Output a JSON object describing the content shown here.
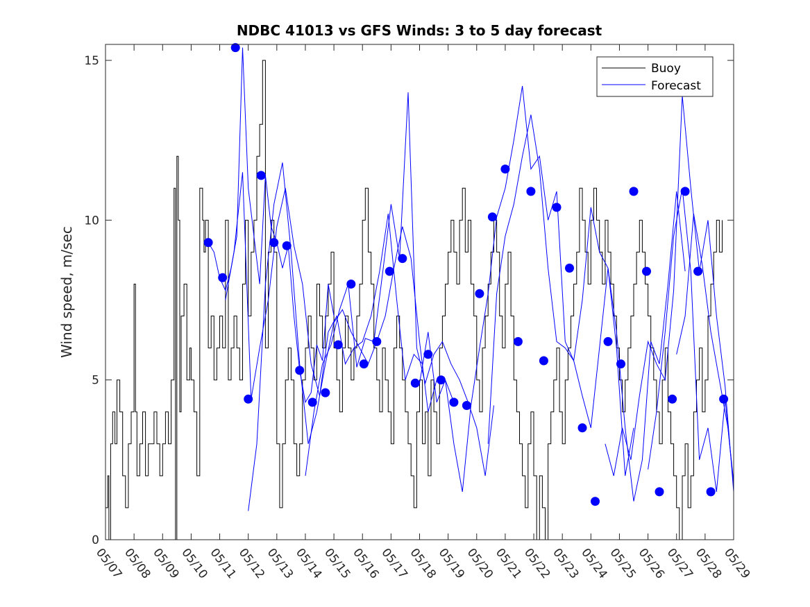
{
  "chart_data": {
    "type": "line",
    "title": "NDBC 41013 vs GFS Winds: 3 to 5 day forecast",
    "xlabel": "",
    "ylabel": "Wind speed, m/sec",
    "ylim": [
      0,
      15.5
    ],
    "xlim": [
      0,
      22
    ],
    "x_tick_labels": [
      "05/07",
      "05/08",
      "05/09",
      "05/10",
      "05/11",
      "05/12",
      "05/13",
      "05/14",
      "05/15",
      "05/16",
      "05/17",
      "05/18",
      "05/19",
      "05/20",
      "05/21",
      "05/22",
      "05/23",
      "05/24",
      "05/25",
      "05/26",
      "05/27",
      "05/28",
      "05/29"
    ],
    "y_ticks": [
      0,
      5,
      10,
      15
    ],
    "legend": {
      "placement": "top-right",
      "entries": [
        "Buoy",
        "Forecast"
      ]
    },
    "colors": {
      "buoy": "#000000",
      "forecast": "#0000ff"
    },
    "series": [
      {
        "name": "Buoy",
        "x": [
          0.0,
          0.08,
          0.12,
          0.18,
          0.25,
          0.33,
          0.4,
          0.5,
          0.6,
          0.7,
          0.8,
          0.9,
          1.0,
          1.05,
          1.1,
          1.2,
          1.3,
          1.4,
          1.5,
          1.6,
          1.7,
          1.8,
          1.9,
          2.0,
          2.1,
          2.2,
          2.3,
          2.4,
          2.45,
          2.5,
          2.55,
          2.6,
          2.65,
          2.75,
          2.85,
          2.95,
          3.0,
          3.1,
          3.2,
          3.3,
          3.4,
          3.45,
          3.5,
          3.6,
          3.7,
          3.8,
          3.9,
          4.0,
          4.1,
          4.2,
          4.3,
          4.4,
          4.5,
          4.6,
          4.7,
          4.8,
          4.9,
          5.0,
          5.1,
          5.2,
          5.3,
          5.4,
          5.5,
          5.6,
          5.7,
          5.8,
          5.9,
          6.0,
          6.1,
          6.2,
          6.3,
          6.4,
          6.5,
          6.6,
          6.7,
          6.8,
          6.9,
          7.0,
          7.1,
          7.2,
          7.3,
          7.4,
          7.5,
          7.6,
          7.7,
          7.8,
          7.9,
          8.0,
          8.1,
          8.2,
          8.3,
          8.4,
          8.5,
          8.6,
          8.7,
          8.8,
          8.9,
          9.0,
          9.1,
          9.2,
          9.3,
          9.4,
          9.5,
          9.6,
          9.7,
          9.8,
          9.9,
          10.0,
          10.1,
          10.2,
          10.3,
          10.4,
          10.5,
          10.6,
          10.7,
          10.8,
          10.9,
          11.0,
          11.1,
          11.2,
          11.3,
          11.4,
          11.5,
          11.6,
          11.7,
          11.8,
          11.9,
          12.0,
          12.1,
          12.2,
          12.3,
          12.4,
          12.5,
          12.6,
          12.7,
          12.8,
          12.9,
          13.0,
          13.1,
          13.2,
          13.3,
          13.4,
          13.5,
          13.6,
          13.7,
          13.8,
          13.9,
          14.0,
          14.1,
          14.2,
          14.3,
          14.4,
          14.5,
          14.6,
          14.7,
          14.8,
          14.9,
          15.0,
          15.1,
          15.2,
          15.3,
          15.4,
          15.5,
          15.6,
          15.7,
          15.8,
          15.9,
          16.0,
          16.1,
          16.2,
          16.3,
          16.4,
          16.5,
          16.6,
          16.7,
          16.8,
          16.9,
          17.0,
          17.1,
          17.2,
          17.3,
          17.4,
          17.5,
          17.6,
          17.7,
          17.8,
          17.9,
          18.0,
          18.1,
          18.2,
          18.3,
          18.4,
          18.5,
          18.6,
          18.7,
          18.8,
          18.9,
          19.0,
          19.1,
          19.2,
          19.3,
          19.4,
          19.5,
          19.6,
          19.7,
          19.8,
          19.9,
          20.0,
          20.1,
          20.2,
          20.3,
          20.4,
          20.5,
          20.6,
          20.7,
          20.8,
          20.9,
          21.0,
          21.1,
          21.2,
          21.3,
          21.4,
          21.5,
          21.6
        ],
        "values": [
          1,
          2,
          0,
          3,
          4,
          3,
          5,
          4,
          2,
          1,
          3,
          4,
          8,
          4,
          2,
          3,
          4,
          2,
          3,
          3,
          4,
          3,
          2,
          3,
          4,
          3,
          5,
          11,
          0,
          12,
          10,
          4,
          7,
          8,
          5,
          6,
          5,
          4,
          2,
          11,
          10,
          9,
          10,
          6,
          7,
          5,
          6,
          7,
          6,
          10,
          5,
          6,
          7,
          6,
          5,
          8,
          10,
          7,
          9,
          10,
          12,
          13,
          15,
          6,
          9,
          10,
          9,
          3,
          1,
          3,
          5,
          6,
          5,
          3,
          2,
          3,
          5,
          6,
          7,
          6,
          5,
          8,
          7,
          6,
          7,
          8,
          9,
          6,
          5,
          4,
          6,
          7,
          6,
          5,
          6,
          7,
          8,
          10,
          11,
          9,
          8,
          6,
          5,
          4,
          6,
          5,
          4,
          3,
          6,
          7,
          6,
          5,
          4,
          3,
          2,
          1,
          4,
          5,
          3,
          4,
          2,
          5,
          4,
          3,
          6,
          7,
          8,
          9,
          10,
          9,
          8,
          10,
          11,
          9,
          10,
          8,
          7,
          5,
          4,
          6,
          7,
          8,
          9,
          10,
          9,
          7,
          6,
          8,
          9,
          7,
          5,
          4,
          3,
          2,
          1,
          3,
          4,
          2,
          0,
          2,
          1,
          0,
          3,
          4,
          5,
          6,
          4,
          3,
          5,
          6,
          7,
          8,
          9,
          11,
          10,
          9,
          8,
          10,
          11,
          10,
          9,
          8,
          10,
          9,
          8,
          7,
          6,
          5,
          4,
          5,
          6,
          7,
          8,
          9,
          10,
          9,
          8,
          7,
          6,
          5,
          4,
          3,
          5,
          6,
          4,
          3,
          2,
          1,
          0,
          2,
          3,
          1,
          2,
          4,
          5,
          6,
          4,
          5,
          7,
          8,
          9,
          10,
          9,
          10
        ]
      },
      {
        "name": "Forecast",
        "runs": [
          {
            "x": [
              3.6,
              3.8,
              4.0,
              4.2,
              4.4,
              4.6,
              4.8,
              5.0,
              5.2,
              5.4,
              5.6,
              5.8,
              6.0,
              6.2,
              6.4,
              6.6,
              6.8,
              7.0,
              7.2,
              7.4,
              7.6,
              7.8,
              8.0
            ],
            "values": [
              9.3,
              9.0,
              8.2,
              7.8,
              8.5,
              9.5,
              15.4,
              11.0,
              9.5,
              8.0,
              11.4,
              9.8,
              9.3,
              8.5,
              9.2,
              7.0,
              5.3,
              4.3,
              4.6,
              6.1,
              5.6,
              8.0,
              7.0
            ]
          },
          {
            "x": [
              4.2,
              4.5,
              4.8,
              5.1,
              5.4,
              5.7,
              6.0,
              6.3,
              6.6,
              6.9,
              7.2,
              7.5,
              7.8,
              8.1,
              8.4,
              8.7,
              9.0,
              9.3,
              9.6,
              9.9,
              10.2,
              10.5,
              10.8,
              11.1
            ],
            "values": [
              7.5,
              9.0,
              11.5,
              4.4,
              6.0,
              7.5,
              9.8,
              11.0,
              9.2,
              8.0,
              5.5,
              4.5,
              6.5,
              7.0,
              5.5,
              6.0,
              6.2,
              7.0,
              8.4,
              10.2,
              7.5,
              5.0,
              5.8,
              5.5
            ]
          },
          {
            "x": [
              5.0,
              5.3,
              5.6,
              5.9,
              6.2,
              6.5,
              6.8,
              7.1,
              7.4,
              7.7,
              8.0,
              8.3,
              8.6,
              8.9,
              9.2,
              9.5,
              9.8,
              10.1,
              10.4,
              10.7,
              11.0,
              11.3,
              11.6,
              11.9,
              12.2
            ],
            "values": [
              0.9,
              3.0,
              8.0,
              10.5,
              11.8,
              9.0,
              5.5,
              3.0,
              4.0,
              5.5,
              6.8,
              7.2,
              6.5,
              6.0,
              5.5,
              6.2,
              7.0,
              8.5,
              9.8,
              8.8,
              6.2,
              4.0,
              5.0,
              5.0,
              4.3
            ]
          },
          {
            "x": [
              7.0,
              7.3,
              7.6,
              7.9,
              8.2,
              8.5,
              8.8,
              9.1,
              9.4,
              9.7,
              10.0,
              10.3,
              10.6,
              10.9,
              11.2,
              11.5,
              11.8,
              12.1,
              12.4,
              12.7,
              13.0,
              13.3,
              13.6
            ],
            "values": [
              2.0,
              4.0,
              5.5,
              6.1,
              7.2,
              8.0,
              5.4,
              6.3,
              6.2,
              8.3,
              10.5,
              8.8,
              14.0,
              6.0,
              4.9,
              5.8,
              6.2,
              5.5,
              5.0,
              4.3,
              3.5,
              2.0,
              4.2
            ]
          },
          {
            "x": [
              11.0,
              11.3,
              11.6,
              11.9,
              12.2,
              12.5,
              12.8,
              13.1,
              13.4,
              13.7,
              14.0,
              14.3,
              14.6,
              14.9,
              15.2,
              15.5,
              15.8,
              16.1,
              16.4,
              16.7,
              17.0,
              17.3,
              17.6,
              17.9,
              18.2,
              18.5
            ],
            "values": [
              4.9,
              6.5,
              4.3,
              5.0,
              3.0,
              1.5,
              4.2,
              6.0,
              7.7,
              10.1,
              11.0,
              12.5,
              14.2,
              11.6,
              12.0,
              10.0,
              10.9,
              6.2,
              5.6,
              7.5,
              10.4,
              9.0,
              8.5,
              6.0,
              2.0,
              3.5
            ]
          },
          {
            "x": [
              13.4,
              13.7,
              14.0,
              14.3,
              14.6,
              14.9,
              15.2,
              15.5,
              15.8,
              16.1,
              16.4,
              16.7,
              17.0,
              17.3,
              17.6,
              17.9,
              18.2,
              18.5,
              18.8,
              19.1,
              19.4,
              19.7,
              20.0,
              20.3
            ],
            "values": [
              3.0,
              7.7,
              9.5,
              10.5,
              12.0,
              13.3,
              11.6,
              8.5,
              6.2,
              6.0,
              5.6,
              4.5,
              3.5,
              6.0,
              8.5,
              6.5,
              3.5,
              1.2,
              2.5,
              6.2,
              5.5,
              8.0,
              10.9,
              8.4
            ]
          },
          {
            "x": [
              17.5,
              17.8,
              18.1,
              18.4,
              18.7,
              19.0,
              19.3,
              19.6,
              19.9,
              20.2,
              20.5,
              20.8,
              21.1,
              21.4,
              21.7,
              22.0
            ],
            "values": [
              3.0,
              2.0,
              3.5,
              2.5,
              4.5,
              6.2,
              5.5,
              5.0,
              7.8,
              13.9,
              11.0,
              8.4,
              10.0,
              7.0,
              4.8,
              1.5
            ]
          },
          {
            "x": [
              19.0,
              19.3,
              19.6,
              19.9,
              20.2,
              20.5,
              20.8,
              21.1,
              21.4,
              21.7,
              22.0
            ],
            "values": [
              2.2,
              4.0,
              6.5,
              9.5,
              11.0,
              8.4,
              2.5,
              3.5,
              1.5,
              4.4,
              1.7
            ]
          },
          {
            "x": [
              20.0,
              20.3,
              20.6,
              20.9,
              21.2,
              21.5,
              21.8,
              22.0
            ],
            "values": [
              5.8,
              7.0,
              10.2,
              8.6,
              6.5,
              5.0,
              3.5,
              1.8
            ]
          }
        ],
        "markers": {
          "x": [
            3.6,
            4.1,
            4.55,
            5.0,
            5.45,
            5.9,
            6.35,
            6.8,
            7.25,
            7.7,
            8.15,
            8.6,
            9.05,
            9.5,
            9.95,
            10.4,
            10.85,
            11.3,
            11.75,
            12.2,
            12.65,
            13.1,
            13.55,
            14.0,
            14.45,
            14.9,
            15.35,
            15.8,
            16.25,
            16.7,
            17.15,
            17.6,
            18.05,
            18.5,
            18.95,
            19.4,
            19.85,
            20.3,
            20.75,
            21.2,
            21.65
          ],
          "values": [
            9.3,
            8.2,
            15.4,
            4.4,
            11.4,
            9.3,
            9.2,
            5.3,
            4.3,
            4.6,
            6.1,
            8.0,
            5.5,
            6.2,
            8.4,
            8.8,
            4.9,
            5.8,
            5.0,
            4.3,
            4.2,
            7.7,
            10.1,
            11.6,
            6.2,
            10.9,
            5.6,
            10.4,
            8.5,
            3.5,
            1.2,
            6.2,
            5.5,
            10.9,
            8.4,
            1.5,
            4.4,
            10.9,
            8.4,
            1.5,
            4.4
          ]
        }
      }
    ]
  }
}
